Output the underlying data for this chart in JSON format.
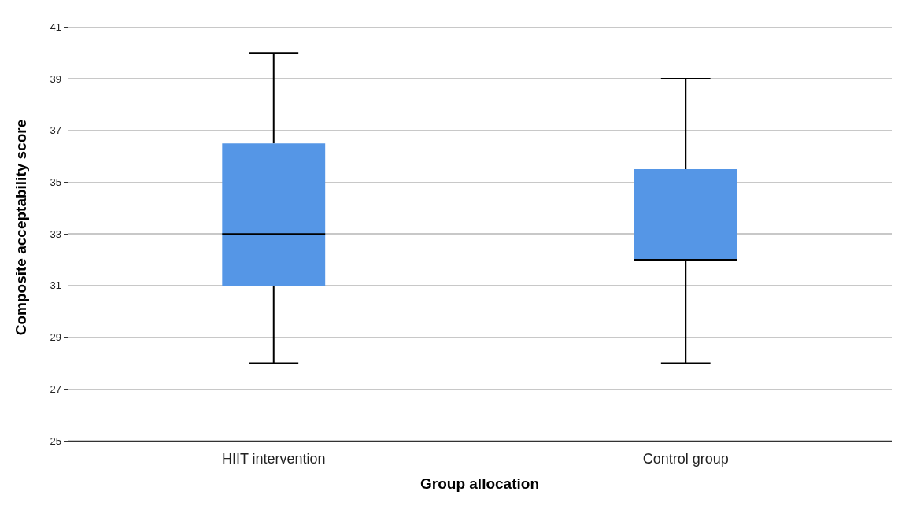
{
  "chart_data": {
    "type": "box",
    "xlabel": "Group allocation",
    "ylabel": "Composite acceptability score",
    "categories": [
      "HIIT intervention",
      "Control group"
    ],
    "boxes": [
      {
        "low": 28,
        "q1": 31,
        "median": 33,
        "q3": 36.5,
        "high": 40
      },
      {
        "low": 28,
        "q1": 32,
        "median": 32,
        "q3": 35.5,
        "high": 39
      }
    ],
    "color": "#5596e6",
    "ylim": [
      25,
      41.5
    ],
    "yticks": [
      25,
      27,
      29,
      31,
      33,
      35,
      37,
      39,
      41
    ],
    "grid": "y"
  }
}
